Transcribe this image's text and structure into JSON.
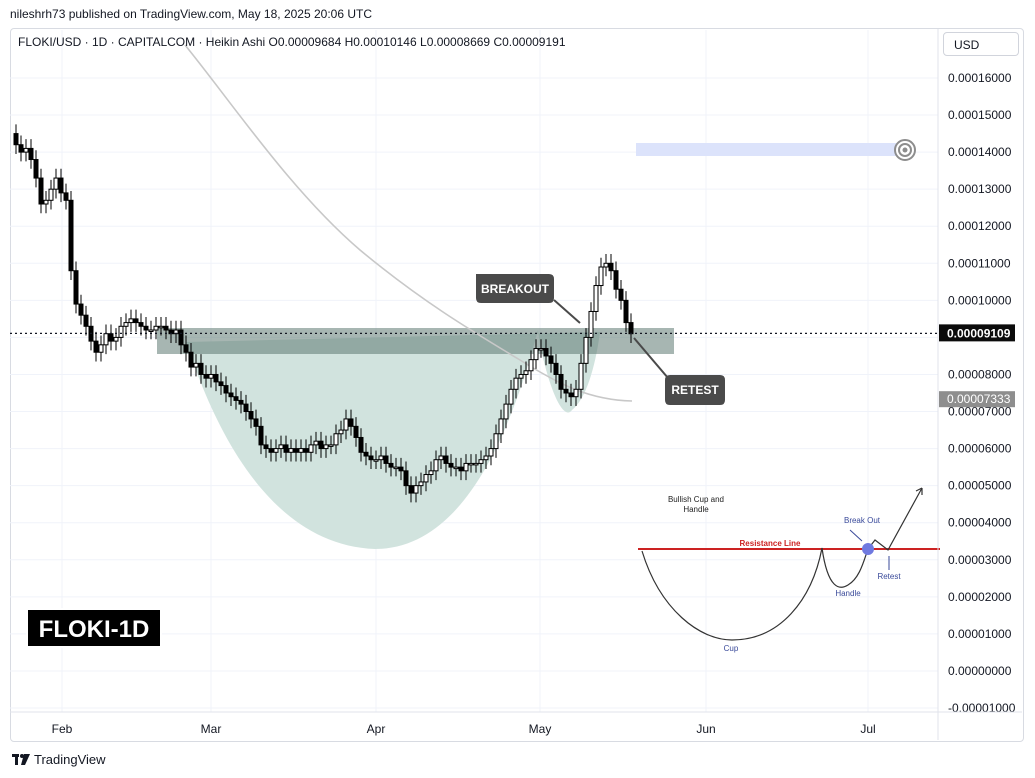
{
  "header": {
    "published_by": "nileshrh73 published on TradingView.com, May 18, 2025 20:06 UTC"
  },
  "symbol": {
    "pair": "FLOKI/USD · 1D · CAPITALCOM · Heikin Ashi",
    "open": "O0.00009684",
    "high": "H0.00010146",
    "low": "L0.00008669",
    "close": "C0.00009191"
  },
  "currency_button": "USD",
  "footer": {
    "brand": "TradingView"
  },
  "chart_data": {
    "type": "candlestick",
    "ticker_badge": "FLOKI-1D",
    "x_axis_labels": [
      "Feb",
      "Mar",
      "Apr",
      "May",
      "Jun",
      "Jul"
    ],
    "y_axis_ticks": [
      "0.00016000",
      "0.00015000",
      "0.00014000",
      "0.00013000",
      "0.00012000",
      "0.00011000",
      "0.00010000",
      "0.00008000",
      "0.00007000",
      "0.00006000",
      "0.00005000",
      "0.00004000",
      "0.00003000",
      "0.00002000",
      "0.00001000",
      "0.00000000",
      "-0.00001000"
    ],
    "ylim": [
      -1.2e-05,
      0.000168
    ],
    "last_price_label": "0.00009109",
    "ma_price_label": "0.00007333",
    "annotations": {
      "breakout": "BREAKOUT",
      "retest": "RETEST"
    },
    "inset": {
      "title": "Bullish Cup and Handle",
      "resistance": "Resistance Line",
      "breakout": "Break Out",
      "retest": "Retest",
      "handle": "Handle",
      "cup": "Cup"
    },
    "colors": {
      "candle": "#000000",
      "zone": "#5f7a73",
      "cup_fill": "#cfe2dc",
      "target": "#dce3fb",
      "ma": "#c8c8c8",
      "resistance": "#cc2222"
    }
  }
}
